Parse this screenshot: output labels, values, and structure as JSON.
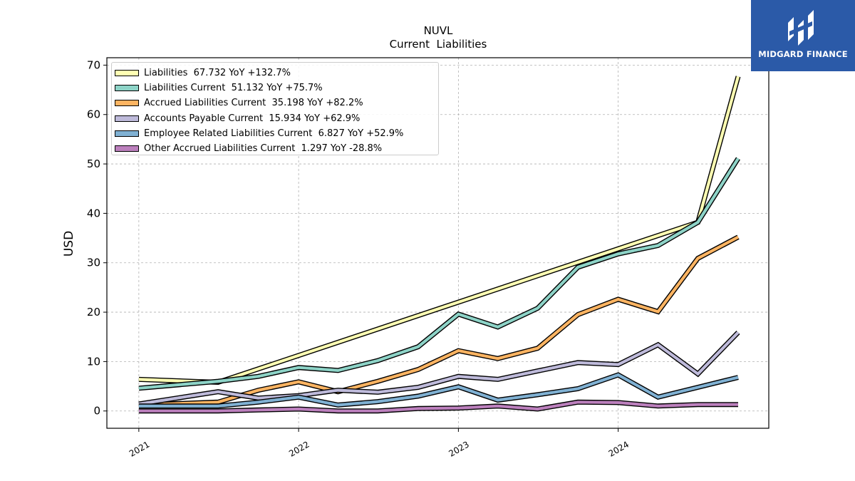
{
  "brand": {
    "name": "MIDGARD FINANCE",
    "color": "#2b5aa8",
    "icon": "midgard-logo-icon"
  },
  "chart_data": {
    "type": "line",
    "title": "NUVL",
    "subtitle": "Current  Liabilities",
    "xlabel": "",
    "ylabel": "USD",
    "xlim": [
      "2020-10-20",
      "2024-12-10"
    ],
    "ylim": [
      -3.5,
      71.5
    ],
    "yticks": [
      0,
      10,
      20,
      30,
      40,
      50,
      60,
      70
    ],
    "xticks": [
      {
        "date": "2021-01-01",
        "label": "2021"
      },
      {
        "date": "2022-01-01",
        "label": "2022"
      },
      {
        "date": "2023-01-01",
        "label": "2023"
      },
      {
        "date": "2024-01-01",
        "label": "2024"
      }
    ],
    "grid": true,
    "legend_position": "top-left",
    "dates": [
      "2021-01-01",
      "2021-04-01",
      "2021-07-01",
      "2021-10-01",
      "2022-01-01",
      "2022-04-01",
      "2022-07-01",
      "2022-10-01",
      "2023-01-01",
      "2023-04-01",
      "2023-07-01",
      "2023-10-01",
      "2024-01-01",
      "2024-04-01",
      "2024-07-01",
      "2024-10-01"
    ],
    "series": [
      {
        "name": "Liabilities",
        "legend": "Liabilities  67.732 YoY +132.7%",
        "color": "#ffffb3",
        "values": [
          6.4,
          null,
          5.8,
          null,
          null,
          null,
          null,
          null,
          null,
          null,
          null,
          null,
          null,
          null,
          38.2,
          67.7
        ]
      },
      {
        "name": "Liabilities Current",
        "legend": "Liabilities Current  51.132 YoY +75.7%",
        "color": "#8dd3c7",
        "values": [
          4.6,
          null,
          6.0,
          7.0,
          8.8,
          8.2,
          10.2,
          13.0,
          19.6,
          17.0,
          20.8,
          29.1,
          31.8,
          33.5,
          38.2,
          51.1
        ]
      },
      {
        "name": "Accrued Liabilities Current",
        "legend": "Accrued Liabilities Current  35.198 YoY +82.2%",
        "color": "#fdb462",
        "values": [
          1.2,
          null,
          1.8,
          4.2,
          5.9,
          3.9,
          6.0,
          8.4,
          12.2,
          10.6,
          12.7,
          19.5,
          22.6,
          20.1,
          30.9,
          35.2
        ]
      },
      {
        "name": "Accounts Payable Current",
        "legend": "Accounts Payable Current  15.934 YoY +62.9%",
        "color": "#bebada",
        "values": [
          1.4,
          null,
          3.9,
          2.6,
          3.1,
          4.2,
          3.8,
          4.8,
          7.0,
          6.4,
          8.1,
          9.8,
          9.4,
          13.4,
          7.5,
          15.9
        ]
      },
      {
        "name": "Employee Related Liabilities Current",
        "legend": "Employee Related Liabilities Current  6.827 YoY +52.9%",
        "color": "#80b1d3",
        "values": [
          1.0,
          null,
          1.0,
          1.8,
          2.8,
          1.2,
          1.9,
          3.0,
          4.9,
          2.2,
          3.3,
          4.5,
          7.3,
          2.8,
          4.8,
          6.8
        ]
      },
      {
        "name": "Other Accrued Liabilities Current",
        "legend": "Other Accrued Liabilities Current  1.297 YoY -28.8%",
        "color": "#bc80bd",
        "values": [
          0.0,
          null,
          0.0,
          0.2,
          0.4,
          0.0,
          0.0,
          0.5,
          0.6,
          1.0,
          0.4,
          1.8,
          1.7,
          1.0,
          1.3,
          1.3
        ]
      }
    ]
  }
}
